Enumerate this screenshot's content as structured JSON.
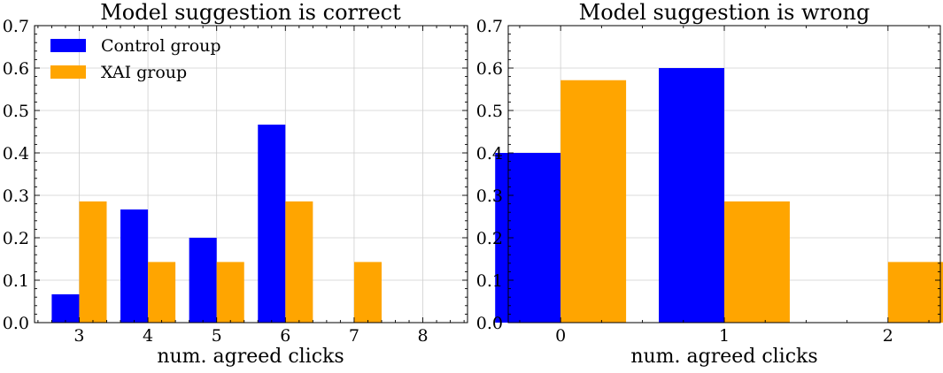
{
  "colors": {
    "control": "#0000ff",
    "xai": "#ffa500"
  },
  "chart_data": [
    {
      "type": "bar",
      "title": "Model suggestion is correct",
      "xlabel": "num. agreed clicks",
      "ylabel": "",
      "categories": [
        "3",
        "4",
        "5",
        "6",
        "7",
        "8"
      ],
      "xlim": [
        2.35,
        8.65
      ],
      "ylim": [
        0,
        0.7
      ],
      "yticks": [
        "0.0",
        "0.1",
        "0.2",
        "0.3",
        "0.4",
        "0.5",
        "0.6",
        "0.7"
      ],
      "grid": true,
      "legend_position": "top-left",
      "series": [
        {
          "name": "Control group",
          "color_key": "control",
          "values": [
            0.0667,
            0.2667,
            0.2,
            0.4667,
            0,
            0
          ]
        },
        {
          "name": "XAI group",
          "color_key": "xai",
          "values": [
            0.2857,
            0.1429,
            0.1429,
            0.2857,
            0.1429,
            0
          ]
        }
      ]
    },
    {
      "type": "bar",
      "title": "Model suggestion is wrong",
      "xlabel": "num. agreed clicks",
      "ylabel": "",
      "categories": [
        "0",
        "1",
        "2"
      ],
      "xlim": [
        -0.32,
        2.32
      ],
      "ylim": [
        0,
        0.7
      ],
      "yticks": [
        "0.0",
        "0.1",
        "0.2",
        "0.3",
        "0.4",
        "0.5",
        "0.6",
        "0.7"
      ],
      "grid": true,
      "legend_position": "none",
      "series": [
        {
          "name": "Control group",
          "color_key": "control",
          "values": [
            0.4,
            0.6,
            0
          ]
        },
        {
          "name": "XAI group",
          "color_key": "xai",
          "values": [
            0.5714,
            0.2857,
            0.1429
          ]
        }
      ]
    }
  ]
}
